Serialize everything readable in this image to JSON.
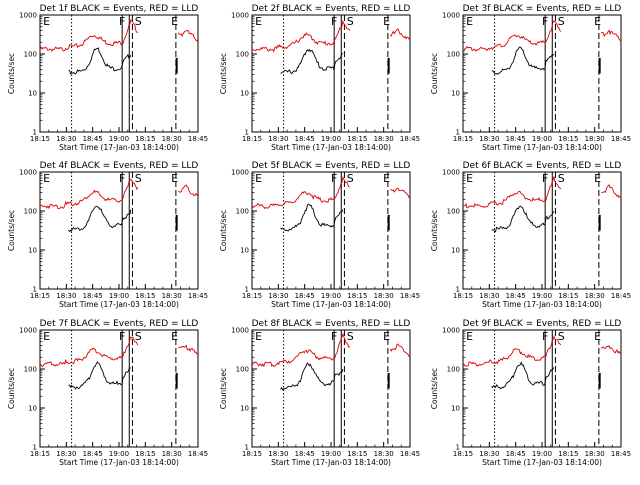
{
  "figure": {
    "background": "#ffffff",
    "colors": {
      "events": "#000000",
      "lld": "#e00000"
    }
  },
  "chart_data": [
    {
      "type": "line",
      "title": "Det 1f BLACK = Events, RED = LLD",
      "xlabel": "Start Time (17-Jan-03 18:14:00)",
      "ylabel": "Counts/sec",
      "yscale": "log",
      "ylim": [
        1,
        1000
      ],
      "yticks": [
        "1",
        "10",
        "100",
        "1000"
      ],
      "xticks": [
        "18:15",
        "18:30",
        "18:45",
        "19:00",
        "18:15",
        "18:30",
        "18:45"
      ],
      "event_markers": [
        "E",
        "F",
        "S",
        "E"
      ]
    },
    {
      "type": "line",
      "title": "Det 2f BLACK = Events, RED = LLD",
      "xlabel": "Start Time (17-Jan-03 18:14:00)",
      "ylabel": "Counts/sec",
      "yscale": "log",
      "ylim": [
        1,
        1000
      ],
      "yticks": [
        "1",
        "10",
        "100",
        "1000"
      ],
      "xticks": [
        "18:15",
        "18:30",
        "18:45",
        "19:00",
        "18:15",
        "18:30",
        "18:45"
      ],
      "event_markers": [
        "E",
        "F",
        "S",
        "E"
      ]
    },
    {
      "type": "line",
      "title": "Det 3f BLACK = Events, RED = LLD",
      "xlabel": "Start Time (17-Jan-03 18:14:00)",
      "ylabel": "Counts/sec",
      "yscale": "log",
      "ylim": [
        1,
        1000
      ],
      "yticks": [
        "1",
        "10",
        "100",
        "1000"
      ],
      "xticks": [
        "18:15",
        "18:30",
        "18:45",
        "19:00",
        "18:15",
        "18:30",
        "18:45"
      ],
      "event_markers": [
        "E",
        "F",
        "S",
        "E"
      ]
    },
    {
      "type": "line",
      "title": "Det 4f BLACK = Events, RED = LLD",
      "xlabel": "Start Time (17-Jan-03 18:14:00)",
      "ylabel": "Counts/sec",
      "yscale": "log",
      "ylim": [
        1,
        1000
      ],
      "yticks": [
        "1",
        "10",
        "100",
        "1000"
      ],
      "xticks": [
        "18:15",
        "18:30",
        "18:45",
        "19:00",
        "18:15",
        "18:30",
        "18:45"
      ],
      "event_markers": [
        "E",
        "F",
        "S",
        "E"
      ]
    },
    {
      "type": "line",
      "title": "Det 5f BLACK = Events, RED = LLD",
      "xlabel": "Start Time (17-Jan-03 18:14:00)",
      "ylabel": "Counts/sec",
      "yscale": "log",
      "ylim": [
        1,
        1000
      ],
      "yticks": [
        "1",
        "10",
        "100",
        "1000"
      ],
      "xticks": [
        "18:15",
        "18:30",
        "18:45",
        "19:00",
        "18:15",
        "18:30",
        "18:45"
      ],
      "event_markers": [
        "E",
        "F",
        "S",
        "E"
      ]
    },
    {
      "type": "line",
      "title": "Det 6f BLACK = Events, RED = LLD",
      "xlabel": "Start Time (17-Jan-03 18:14:00)",
      "ylabel": "Counts/sec",
      "yscale": "log",
      "ylim": [
        1,
        1000
      ],
      "yticks": [
        "1",
        "10",
        "100",
        "1000"
      ],
      "xticks": [
        "18:15",
        "18:30",
        "18:45",
        "19:00",
        "18:15",
        "18:30",
        "18:45"
      ],
      "event_markers": [
        "E",
        "F",
        "S",
        "E"
      ]
    },
    {
      "type": "line",
      "title": "Det 7f BLACK = Events, RED = LLD",
      "xlabel": "Start Time (17-Jan-03 18:14:00)",
      "ylabel": "Counts/sec",
      "yscale": "log",
      "ylim": [
        1,
        1000
      ],
      "yticks": [
        "1",
        "10",
        "100",
        "1000"
      ],
      "xticks": [
        "18:15",
        "18:30",
        "18:45",
        "19:00",
        "18:15",
        "18:30",
        "18:45"
      ],
      "event_markers": [
        "E",
        "F",
        "S",
        "E"
      ]
    },
    {
      "type": "line",
      "title": "Det 8f BLACK = Events, RED = LLD",
      "xlabel": "Start Time (17-Jan-03 18:14:00)",
      "ylabel": "Counts/sec",
      "yscale": "log",
      "ylim": [
        1,
        1000
      ],
      "yticks": [
        "1",
        "10",
        "100",
        "1000"
      ],
      "xticks": [
        "18:15",
        "18:30",
        "18:45",
        "19:00",
        "18:15",
        "18:30",
        "18:45"
      ],
      "event_markers": [
        "E",
        "F",
        "S",
        "E"
      ]
    },
    {
      "type": "line",
      "title": "Det 9f BLACK = Events, RED = LLD",
      "xlabel": "Start Time (17-Jan-03 18:14:00)",
      "ylabel": "Counts/sec",
      "yscale": "log",
      "ylim": [
        1,
        1000
      ],
      "yticks": [
        "1",
        "10",
        "100",
        "1000"
      ],
      "xticks": [
        "18:15",
        "18:30",
        "18:45",
        "19:00",
        "18:15",
        "18:30",
        "18:45"
      ],
      "event_markers": [
        "E",
        "F",
        "S",
        "E"
      ]
    }
  ]
}
